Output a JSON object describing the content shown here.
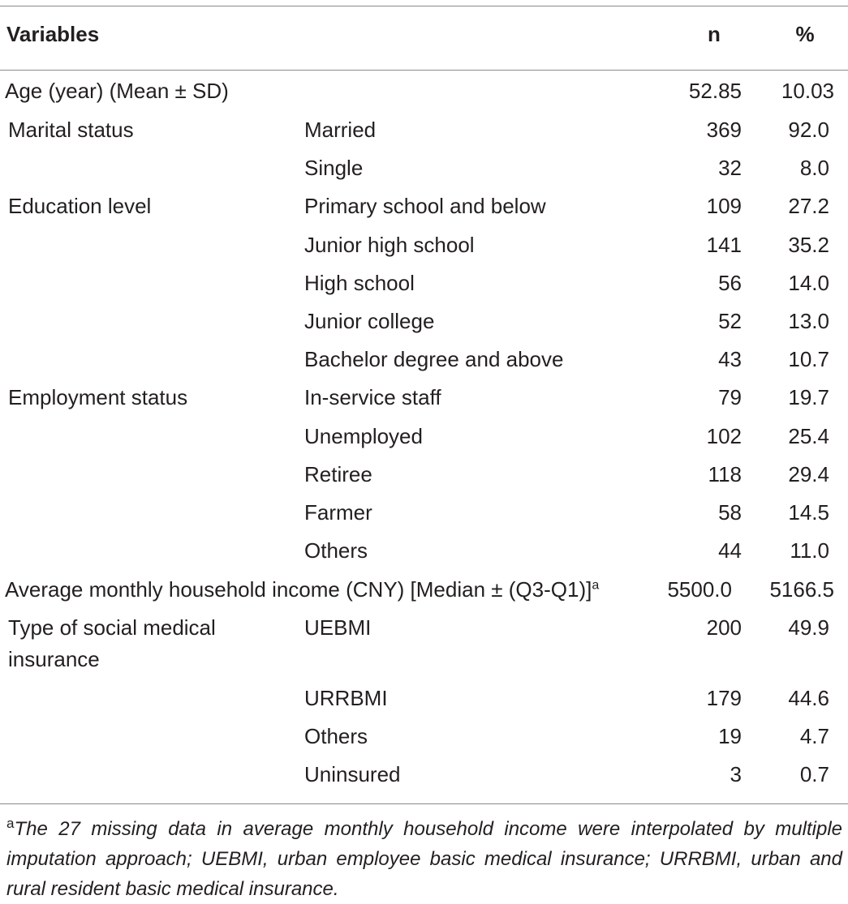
{
  "header": {
    "variables": "Variables",
    "n": "n",
    "percent": "%"
  },
  "rows": [
    {
      "label": "Age (year) (Mean ± SD)",
      "category": "",
      "n": "52.85",
      "pct": "10.03"
    },
    {
      "label": "Marital status",
      "category": "Married",
      "n": "369",
      "pct": "92.0"
    },
    {
      "label": "",
      "category": "Single",
      "n": "32",
      "pct": "8.0"
    },
    {
      "label": "Education level",
      "category": "Primary school and below",
      "n": "109",
      "pct": "27.2"
    },
    {
      "label": "",
      "category": "Junior high school",
      "n": "141",
      "pct": "35.2"
    },
    {
      "label": "",
      "category": "High school",
      "n": "56",
      "pct": "14.0"
    },
    {
      "label": "",
      "category": "Junior college",
      "n": "52",
      "pct": "13.0"
    },
    {
      "label": "",
      "category": "Bachelor degree and above",
      "n": "43",
      "pct": "10.7"
    },
    {
      "label": "Employment status",
      "category": "In-service staff",
      "n": "79",
      "pct": "19.7"
    },
    {
      "label": "",
      "category": "Unemployed",
      "n": "102",
      "pct": "25.4"
    },
    {
      "label": "",
      "category": "Retiree",
      "n": "118",
      "pct": "29.4"
    },
    {
      "label": "",
      "category": "Farmer",
      "n": "58",
      "pct": "14.5"
    },
    {
      "label": "",
      "category": "Others",
      "n": "44",
      "pct": "11.0"
    },
    {
      "label": "Average monthly household income (CNY) [Median ± (Q3-Q1)]",
      "label_sup": "a",
      "category": "",
      "n": "5500.0",
      "pct": "5166.5"
    },
    {
      "label": "Type of social medical",
      "label_line2": "insurance",
      "category": "UEBMI",
      "n": "200",
      "pct": "49.9"
    },
    {
      "label": "",
      "category": "URRBMI",
      "n": "179",
      "pct": "44.6"
    },
    {
      "label": "",
      "category": "Others",
      "n": "19",
      "pct": "4.7"
    },
    {
      "label": "",
      "category": "Uninsured",
      "n": "3",
      "pct": "0.7"
    }
  ],
  "footnote": {
    "mark": "a",
    "text": "The 27 missing data in average monthly household income were interpolated by multiple imputation approach; UEBMI, urban employee basic medical insurance; URRBMI, urban and rural resident basic medical insurance."
  }
}
